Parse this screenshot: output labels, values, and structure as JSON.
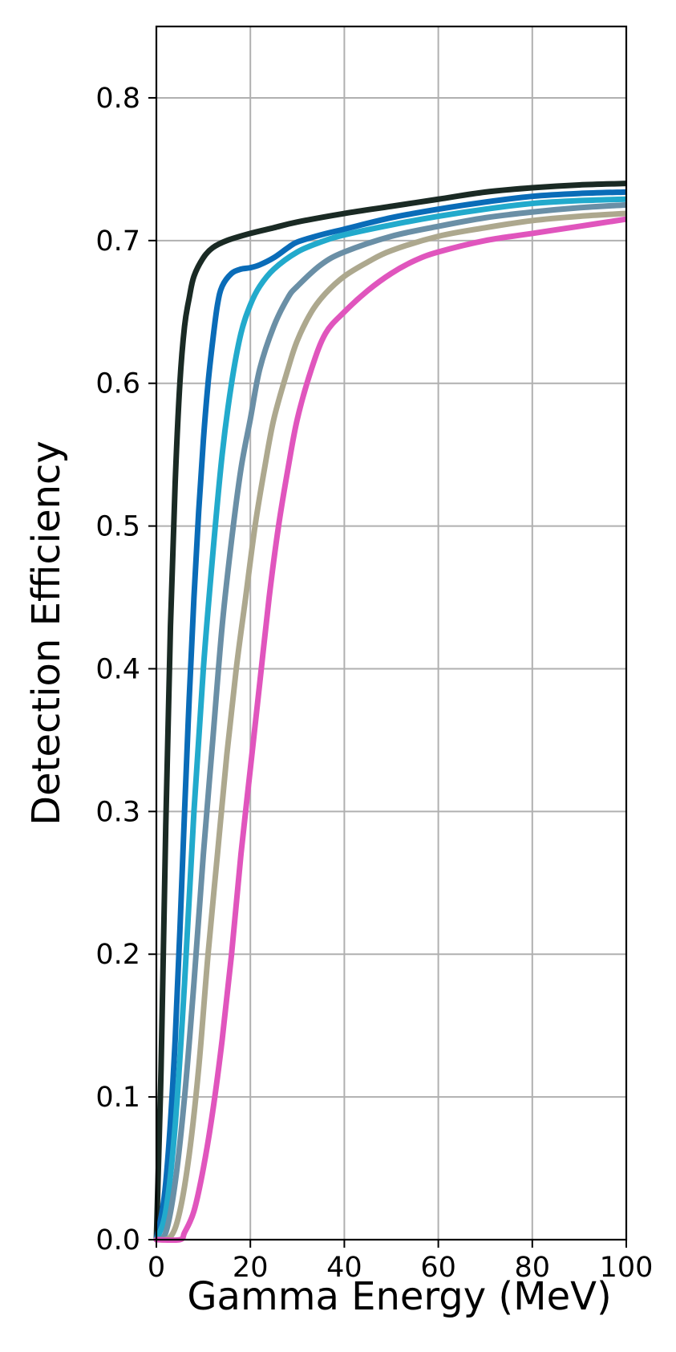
{
  "chart_data": {
    "type": "line",
    "xlabel": "Gamma Energy (MeV)",
    "ylabel": "Detection Efficiency",
    "xlim": [
      0,
      100
    ],
    "ylim": [
      0,
      0.85
    ],
    "xticks": [
      0,
      20,
      40,
      60,
      80,
      100
    ],
    "yticks": [
      0.0,
      0.1,
      0.2,
      0.3,
      0.4,
      0.5,
      0.6,
      0.7,
      0.8
    ],
    "xtick_labels": [
      "0",
      "20",
      "40",
      "60",
      "80",
      "100"
    ],
    "ytick_labels": [
      "0.0",
      "0.1",
      "0.2",
      "0.3",
      "0.4",
      "0.5",
      "0.6",
      "0.7",
      "0.8"
    ],
    "grid": true,
    "legend": false,
    "series": [
      {
        "color": "#1a2a24",
        "points": [
          [
            0,
            0.0
          ],
          [
            1,
            0.12
          ],
          [
            2,
            0.29
          ],
          [
            3,
            0.43
          ],
          [
            4,
            0.53
          ],
          [
            5,
            0.6
          ],
          [
            6,
            0.64
          ],
          [
            7,
            0.66
          ],
          [
            8,
            0.675
          ],
          [
            10,
            0.688
          ],
          [
            12,
            0.695
          ],
          [
            15,
            0.7
          ],
          [
            20,
            0.705
          ],
          [
            25,
            0.709
          ],
          [
            30,
            0.713
          ],
          [
            40,
            0.719
          ],
          [
            50,
            0.724
          ],
          [
            60,
            0.729
          ],
          [
            70,
            0.734
          ],
          [
            80,
            0.737
          ],
          [
            90,
            0.739
          ],
          [
            100,
            0.74
          ]
        ]
      },
      {
        "color": "#0a6cb8",
        "points": [
          [
            0,
            0.0
          ],
          [
            2,
            0.04
          ],
          [
            4,
            0.14
          ],
          [
            6,
            0.3
          ],
          [
            7,
            0.38
          ],
          [
            8,
            0.45
          ],
          [
            9,
            0.51
          ],
          [
            10,
            0.56
          ],
          [
            11,
            0.6
          ],
          [
            12,
            0.63
          ],
          [
            13,
            0.655
          ],
          [
            14,
            0.668
          ],
          [
            16,
            0.677
          ],
          [
            18,
            0.68
          ],
          [
            20,
            0.681
          ],
          [
            22,
            0.683
          ],
          [
            25,
            0.688
          ],
          [
            28,
            0.695
          ],
          [
            30,
            0.699
          ],
          [
            35,
            0.704
          ],
          [
            40,
            0.708
          ],
          [
            50,
            0.716
          ],
          [
            60,
            0.722
          ],
          [
            70,
            0.727
          ],
          [
            80,
            0.731
          ],
          [
            90,
            0.733
          ],
          [
            100,
            0.734
          ]
        ]
      },
      {
        "color": "#22aacc",
        "points": [
          [
            0,
            0.0
          ],
          [
            2,
            0.02
          ],
          [
            4,
            0.08
          ],
          [
            6,
            0.18
          ],
          [
            8,
            0.3
          ],
          [
            10,
            0.4
          ],
          [
            12,
            0.48
          ],
          [
            14,
            0.55
          ],
          [
            16,
            0.6
          ],
          [
            18,
            0.635
          ],
          [
            20,
            0.655
          ],
          [
            22,
            0.668
          ],
          [
            25,
            0.68
          ],
          [
            30,
            0.692
          ],
          [
            35,
            0.699
          ],
          [
            40,
            0.704
          ],
          [
            50,
            0.711
          ],
          [
            60,
            0.717
          ],
          [
            70,
            0.722
          ],
          [
            80,
            0.726
          ],
          [
            90,
            0.728
          ],
          [
            100,
            0.729
          ]
        ]
      },
      {
        "color": "#6a8fa6",
        "points": [
          [
            0,
            0.0
          ],
          [
            2,
            0.005
          ],
          [
            4,
            0.04
          ],
          [
            6,
            0.1
          ],
          [
            8,
            0.18
          ],
          [
            10,
            0.27
          ],
          [
            12,
            0.35
          ],
          [
            14,
            0.43
          ],
          [
            16,
            0.49
          ],
          [
            18,
            0.54
          ],
          [
            20,
            0.575
          ],
          [
            22,
            0.61
          ],
          [
            25,
            0.64
          ],
          [
            28,
            0.66
          ],
          [
            30,
            0.668
          ],
          [
            35,
            0.683
          ],
          [
            40,
            0.692
          ],
          [
            50,
            0.703
          ],
          [
            60,
            0.71
          ],
          [
            70,
            0.716
          ],
          [
            80,
            0.72
          ],
          [
            90,
            0.723
          ],
          [
            100,
            0.725
          ]
        ]
      },
      {
        "color": "#ada88e",
        "points": [
          [
            0,
            0.0
          ],
          [
            3,
            0.002
          ],
          [
            5,
            0.02
          ],
          [
            7,
            0.06
          ],
          [
            9,
            0.12
          ],
          [
            11,
            0.2
          ],
          [
            13,
            0.27
          ],
          [
            15,
            0.34
          ],
          [
            17,
            0.4
          ],
          [
            19,
            0.45
          ],
          [
            21,
            0.5
          ],
          [
            23,
            0.54
          ],
          [
            25,
            0.575
          ],
          [
            28,
            0.61
          ],
          [
            30,
            0.63
          ],
          [
            33,
            0.65
          ],
          [
            36,
            0.663
          ],
          [
            40,
            0.675
          ],
          [
            45,
            0.685
          ],
          [
            50,
            0.693
          ],
          [
            60,
            0.703
          ],
          [
            70,
            0.709
          ],
          [
            80,
            0.714
          ],
          [
            90,
            0.717
          ],
          [
            100,
            0.719
          ]
        ]
      },
      {
        "color": "#e055bd",
        "points": [
          [
            0,
            0.0
          ],
          [
            5,
            0.0
          ],
          [
            6,
            0.005
          ],
          [
            8,
            0.02
          ],
          [
            10,
            0.05
          ],
          [
            12,
            0.09
          ],
          [
            14,
            0.14
          ],
          [
            16,
            0.2
          ],
          [
            18,
            0.27
          ],
          [
            20,
            0.33
          ],
          [
            22,
            0.39
          ],
          [
            24,
            0.45
          ],
          [
            26,
            0.5
          ],
          [
            28,
            0.54
          ],
          [
            30,
            0.575
          ],
          [
            33,
            0.61
          ],
          [
            36,
            0.635
          ],
          [
            40,
            0.65
          ],
          [
            45,
            0.665
          ],
          [
            50,
            0.677
          ],
          [
            55,
            0.686
          ],
          [
            60,
            0.692
          ],
          [
            70,
            0.7
          ],
          [
            80,
            0.705
          ],
          [
            90,
            0.71
          ],
          [
            100,
            0.715
          ]
        ]
      }
    ]
  }
}
